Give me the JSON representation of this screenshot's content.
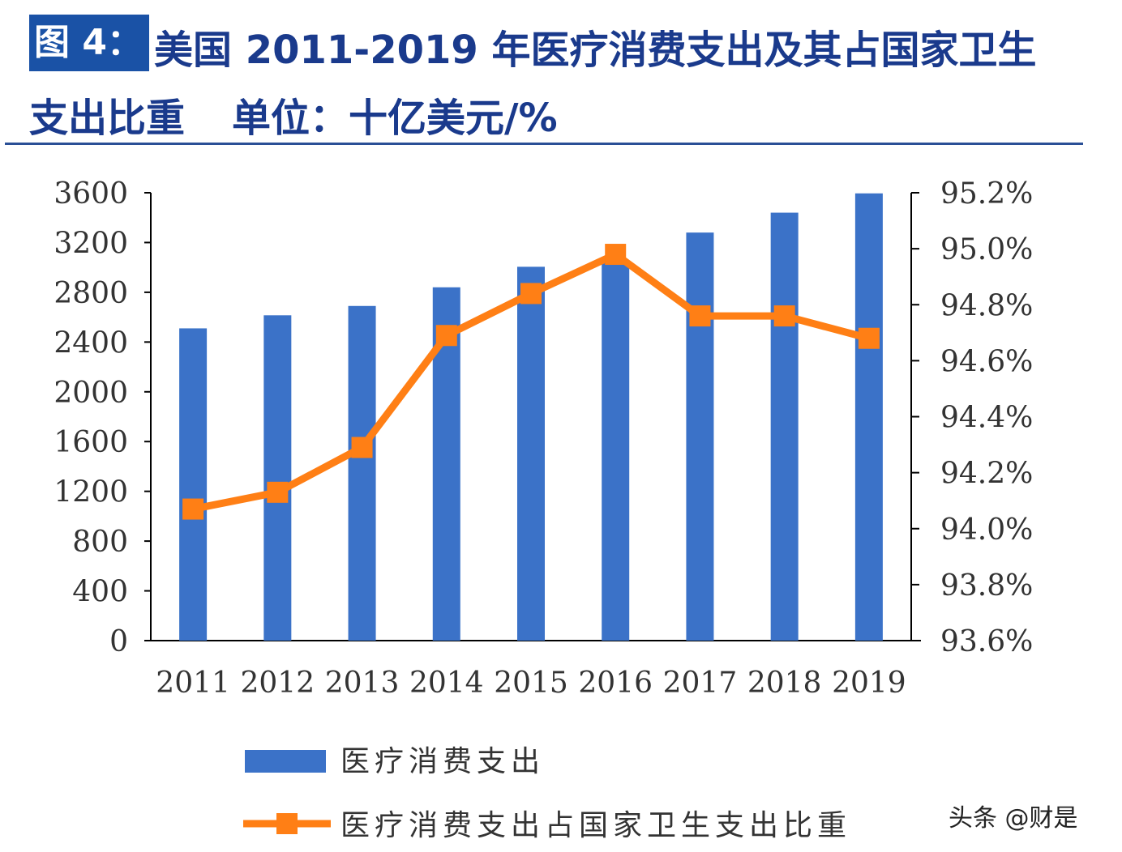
{
  "figure": {
    "tag": "图 4：",
    "title_line1": "美国 2011-2019 年医疗消费支出及其占国家卫生",
    "title_line2": "支出比重",
    "unit": "单位：十亿美元/%"
  },
  "watermark": "头条 @财是",
  "chart_data": {
    "type": "bar",
    "categories": [
      "2011",
      "2012",
      "2013",
      "2014",
      "2015",
      "2016",
      "2017",
      "2018",
      "2019"
    ],
    "series": [
      {
        "name": "医疗消费支出",
        "type": "bar",
        "axis": "left",
        "color": "#3b72c8",
        "values": [
          2510,
          2615,
          2690,
          2840,
          3005,
          3060,
          3280,
          3440,
          3595
        ]
      },
      {
        "name": "医疗消费支出占国家卫生支出比重",
        "type": "line",
        "axis": "right",
        "color": "#ff7f15",
        "values": [
          94.07,
          94.13,
          94.29,
          94.69,
          94.84,
          94.98,
          94.76,
          94.76,
          94.68
        ]
      }
    ],
    "y_left": {
      "min": 0,
      "max": 3600,
      "ticks": [
        "0",
        "400",
        "800",
        "1200",
        "1600",
        "2000",
        "2400",
        "2800",
        "3200",
        "3600"
      ]
    },
    "y_right": {
      "min": 93.6,
      "max": 95.2,
      "ticks": [
        "93.6%",
        "93.8%",
        "94.0%",
        "94.2%",
        "94.4%",
        "94.6%",
        "94.8%",
        "95.0%",
        "95.2%"
      ]
    },
    "legend_position": "bottom-left",
    "grid": false
  }
}
